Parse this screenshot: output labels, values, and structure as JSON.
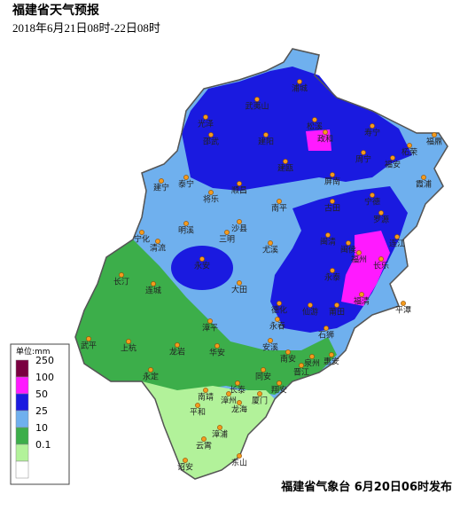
{
  "header": {
    "title": "福建省天气预报",
    "subtitle": "2018年6月21日08时-22日08时"
  },
  "legend": {
    "unit": "单位:mm",
    "items": [
      {
        "label": "250",
        "color": "#7a0040"
      },
      {
        "label": "100",
        "color": "#ff1aff"
      },
      {
        "label": "50",
        "color": "#1a1ae0"
      },
      {
        "label": "25",
        "color": "#6fb0ee"
      },
      {
        "label": "10",
        "color": "#3cae4a"
      },
      {
        "label": "0.1",
        "color": "#b2f29a"
      },
      {
        "label": "",
        "color": "#ffffff"
      }
    ]
  },
  "cities": [
    "浦城",
    "武夷山",
    "光泽",
    "松溪",
    "政和",
    "寿宁",
    "福鼎",
    "邵武",
    "建阳",
    "柘荣",
    "周宁",
    "福安",
    "泰宁",
    "建瓯",
    "屏南",
    "霞浦",
    "建宁",
    "顺昌",
    "将乐",
    "南平",
    "古田",
    "宁德",
    "罗源",
    "明溪",
    "沙县",
    "闽清",
    "连江",
    "清流",
    "宁化",
    "三明",
    "尤溪",
    "闽侯",
    "福州",
    "长乐",
    "永安",
    "永泰",
    "福清",
    "平潭",
    "长汀",
    "连城",
    "大田",
    "德化",
    "仙游",
    "莆田",
    "漳平",
    "永春",
    "石狮",
    "武平",
    "上杭",
    "龙岩",
    "华安",
    "安溪",
    "南安",
    "泉州",
    "惠安",
    "永定",
    "同安",
    "晋江",
    "长泰",
    "翔安",
    "南靖",
    "漳州",
    "厦门",
    "龙海",
    "平和",
    "漳浦",
    "云霄",
    "东山",
    "诏安"
  ],
  "footer": "福建省气象台  6月20日06时发布"
}
